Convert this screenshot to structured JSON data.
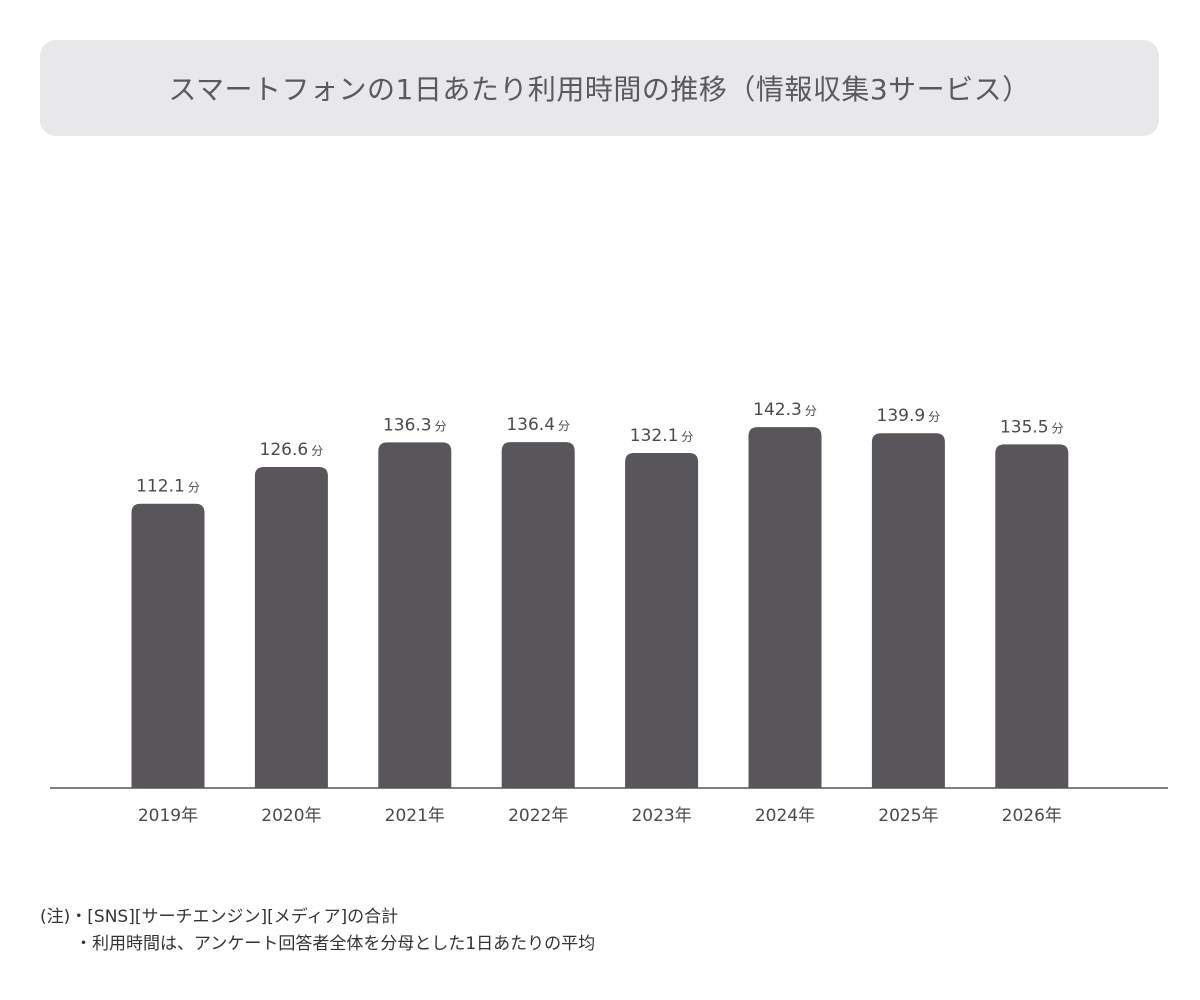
{
  "title": "スマートフォンの1日あたり利用時間の推移（情報収集3サービス）",
  "chart_data": {
    "type": "bar",
    "title": "スマートフォンの1日あたり利用時間の推移（情報収集3サービス）",
    "categories": [
      "2019年",
      "2020年",
      "2021年",
      "2022年",
      "2023年",
      "2024年",
      "2025年",
      "2026年"
    ],
    "values": [
      112.1,
      126.6,
      136.3,
      136.4,
      132.1,
      142.3,
      139.9,
      135.5
    ],
    "value_labels": [
      "112.1",
      "126.6",
      "136.3",
      "136.4",
      "132.1",
      "142.3",
      "139.9",
      "135.5"
    ],
    "unit": "分",
    "xlabel": "",
    "ylabel": "",
    "ylim": [
      0,
      160
    ],
    "grid": false,
    "legend": "none",
    "bar_color": "#58565a",
    "axis_color": "#555555"
  },
  "notes": {
    "line1": "(注)・[SNS][サーチエンジン][メディア]の合計",
    "line2": "・利用時間は、アンケート回答者全体を分母とした1日あたりの平均"
  }
}
